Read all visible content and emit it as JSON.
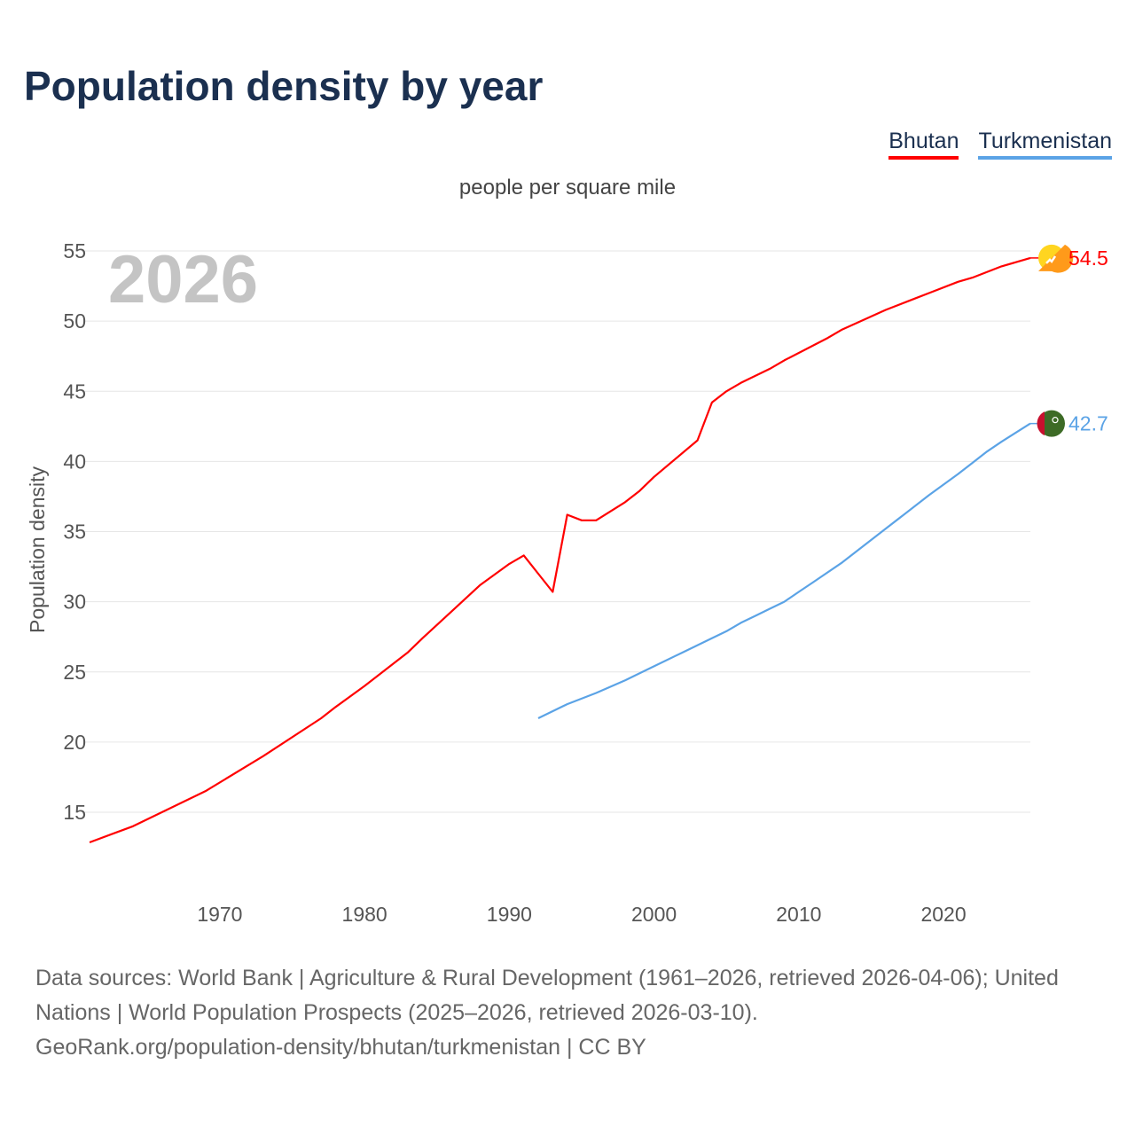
{
  "title": "Population density by year",
  "unit_label": "people per square mile",
  "year_watermark": "2026",
  "legend": [
    {
      "label": "Bhutan",
      "color": "#ff0000"
    },
    {
      "label": "Turkmenistan",
      "color": "#5ba3e6"
    }
  ],
  "footer": {
    "line1": "Data sources: World Bank | Agriculture & Rural Development (1961–2026, retrieved 2026-04-06); United Nations | World Population Prospects (2025–2026, retrieved 2026-03-10).",
    "line2": "GeoRank.org/population-density/bhutan/turkmenistan | CC BY"
  },
  "chart_data": {
    "type": "line",
    "title": "Population density by year",
    "subtitle": "people per square mile",
    "xlabel": "",
    "ylabel": "Population density",
    "xlim": [
      1961,
      2026
    ],
    "ylim": [
      12.5,
      55.5
    ],
    "xticks": [
      1970,
      1980,
      1990,
      2000,
      2010,
      2020
    ],
    "yticks": [
      15,
      20,
      25,
      30,
      35,
      40,
      45,
      50,
      55
    ],
    "grid": true,
    "legend_position": "top-right",
    "series": [
      {
        "name": "Bhutan",
        "color": "#ff0000",
        "end_label": "54.5",
        "flag": "bhutan-flag",
        "x": [
          1961,
          1964,
          1969,
          1973,
          1977,
          1978,
          1980,
          1982,
          1983,
          1984,
          1986,
          1988,
          1990,
          1991,
          1992,
          1993,
          1994,
          1995,
          1996,
          1998,
          1999,
          2000,
          2003,
          2004,
          2005,
          2006,
          2008,
          2009,
          2012,
          2013,
          2016,
          2018,
          2019,
          2021,
          2022,
          2024,
          2025,
          2026
        ],
        "y": [
          12.85,
          14.0,
          16.5,
          19.0,
          21.7,
          22.5,
          24.0,
          25.6,
          26.4,
          27.4,
          29.3,
          31.2,
          32.7,
          33.3,
          32.0,
          30.7,
          36.2,
          35.8,
          35.8,
          37.1,
          37.9,
          38.9,
          41.5,
          44.2,
          45.0,
          45.6,
          46.6,
          47.2,
          48.8,
          49.4,
          50.8,
          51.6,
          52.0,
          52.8,
          53.1,
          53.9,
          54.2,
          54.5
        ]
      },
      {
        "name": "Turkmenistan",
        "color": "#5ba3e6",
        "end_label": "42.7",
        "flag": "turkmenistan-flag",
        "x": [
          1992,
          1994,
          1996,
          1998,
          2000,
          2002,
          2004,
          2005,
          2006,
          2007,
          2008,
          2009,
          2010,
          2011,
          2013,
          2016,
          2019,
          2021,
          2022,
          2023,
          2024,
          2026
        ],
        "y": [
          21.7,
          22.7,
          23.5,
          24.4,
          25.4,
          26.4,
          27.4,
          27.9,
          28.5,
          29.0,
          29.5,
          30.0,
          30.7,
          31.4,
          32.8,
          35.2,
          37.6,
          39.1,
          39.9,
          40.7,
          41.4,
          42.7
        ]
      }
    ]
  }
}
